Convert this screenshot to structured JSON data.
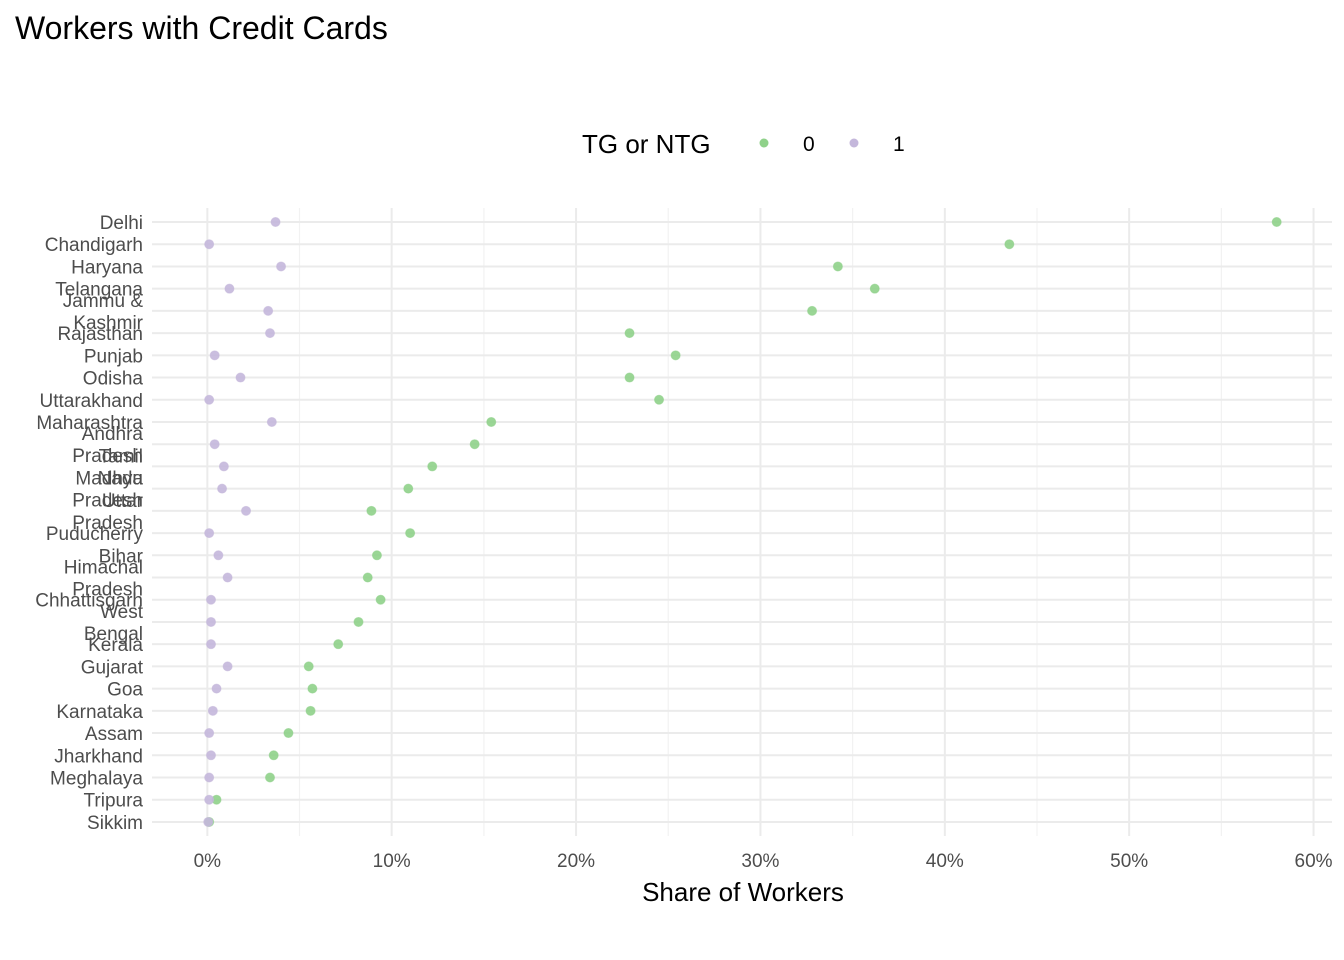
{
  "chart_data": {
    "type": "scatter",
    "title": "Workers with Credit Cards",
    "xlabel": "Share of Workers",
    "ylabel": "",
    "xlim": [
      -3,
      61
    ],
    "xticks": [
      0,
      10,
      20,
      30,
      40,
      50,
      60
    ],
    "xtick_labels": [
      "0%",
      "10%",
      "20%",
      "30%",
      "40%",
      "50%",
      "60%"
    ],
    "grid": true,
    "legend": {
      "title": "TG or NTG",
      "position": "top"
    },
    "categories": [
      "Delhi",
      "Chandigarh",
      "Haryana",
      "Telangana",
      "Jammu &\nKashmir",
      "Rajasthan",
      "Punjab",
      "Odisha",
      "Uttarakhand",
      "Maharashtra",
      "Andhra\nPradesh",
      "Tamil\nNadu",
      "Madhya\nPradesh",
      "Uttar\nPradesh",
      "Puducherry",
      "Bihar",
      "Himachal\nPradesh",
      "Chhattisgarh",
      "West\nBengal",
      "Kerala",
      "Gujarat",
      "Goa",
      "Karnataka",
      "Assam",
      "Jharkhand",
      "Meghalaya",
      "Tripura",
      "Sikkim"
    ],
    "series": [
      {
        "name": "0",
        "color": "#8fd18a",
        "values": [
          58.0,
          43.5,
          34.2,
          36.2,
          32.8,
          22.9,
          25.4,
          22.9,
          24.5,
          15.4,
          14.5,
          12.2,
          10.9,
          8.9,
          11.0,
          9.2,
          8.7,
          9.4,
          8.2,
          7.1,
          5.5,
          5.7,
          5.6,
          4.4,
          3.6,
          3.4,
          0.5,
          0.1
        ]
      },
      {
        "name": "1",
        "color": "#c4b7db",
        "values": [
          3.7,
          0.1,
          4.0,
          1.2,
          3.3,
          3.4,
          0.4,
          1.8,
          0.1,
          3.5,
          0.4,
          0.9,
          0.8,
          2.1,
          0.1,
          0.6,
          1.1,
          0.2,
          0.2,
          0.2,
          1.1,
          0.5,
          0.3,
          0.1,
          0.2,
          0.1,
          0.1,
          0.05
        ]
      }
    ]
  }
}
